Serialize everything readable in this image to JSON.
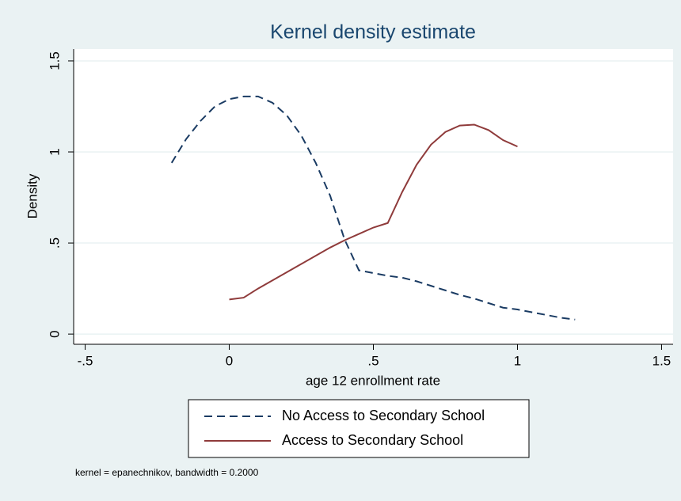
{
  "chart_data": {
    "type": "line",
    "title": "Kernel density estimate",
    "x_label": "age 12 enrollment rate",
    "y_label": "Density",
    "note": "kernel = epanechnikov, bandwidth = 0.2000",
    "xlim": [
      -0.54,
      1.54
    ],
    "ylim": [
      -0.056,
      1.565
    ],
    "xticks": [
      {
        "value": -0.5,
        "label": "-.5"
      },
      0,
      {
        "value": 0.5,
        "label": ".5"
      },
      1,
      {
        "value": 1.5,
        "label": "1.5"
      }
    ],
    "yticks": [
      0,
      {
        "value": 0.5,
        "label": ".5"
      },
      1,
      {
        "value": 1.5,
        "label": "1.5"
      }
    ],
    "grid": true,
    "legend": "bottom",
    "series": [
      {
        "name": "No Access to Secondary School",
        "color": "#1a3b63",
        "dash": true,
        "x": [
          -0.2,
          -0.15,
          -0.1,
          -0.05,
          0,
          0.05,
          0.1,
          0.15,
          0.2,
          0.25,
          0.3,
          0.35,
          0.4,
          0.45,
          0.5,
          0.55,
          0.6,
          0.65,
          0.7,
          0.75,
          0.8,
          0.85,
          0.9,
          0.95,
          1.0,
          1.05,
          1.1,
          1.15,
          1.2
        ],
        "values": [
          0.94,
          1.07,
          1.17,
          1.25,
          1.29,
          1.305,
          1.305,
          1.27,
          1.2,
          1.09,
          0.94,
          0.76,
          0.52,
          0.35,
          0.335,
          0.32,
          0.31,
          0.29,
          0.265,
          0.24,
          0.215,
          0.195,
          0.17,
          0.145,
          0.135,
          0.12,
          0.105,
          0.09,
          0.08
        ]
      },
      {
        "name": "Access to Secondary School",
        "color": "#8f3b3b",
        "dash": false,
        "x": [
          0,
          0.05,
          0.1,
          0.15,
          0.2,
          0.25,
          0.3,
          0.35,
          0.4,
          0.45,
          0.5,
          0.55,
          0.6,
          0.65,
          0.7,
          0.75,
          0.8,
          0.85,
          0.9,
          0.95,
          1.0
        ],
        "values": [
          0.19,
          0.2,
          0.25,
          0.295,
          0.34,
          0.385,
          0.43,
          0.475,
          0.515,
          0.55,
          0.585,
          0.61,
          0.78,
          0.93,
          1.04,
          1.11,
          1.145,
          1.15,
          1.12,
          1.065,
          1.03
        ]
      }
    ]
  }
}
